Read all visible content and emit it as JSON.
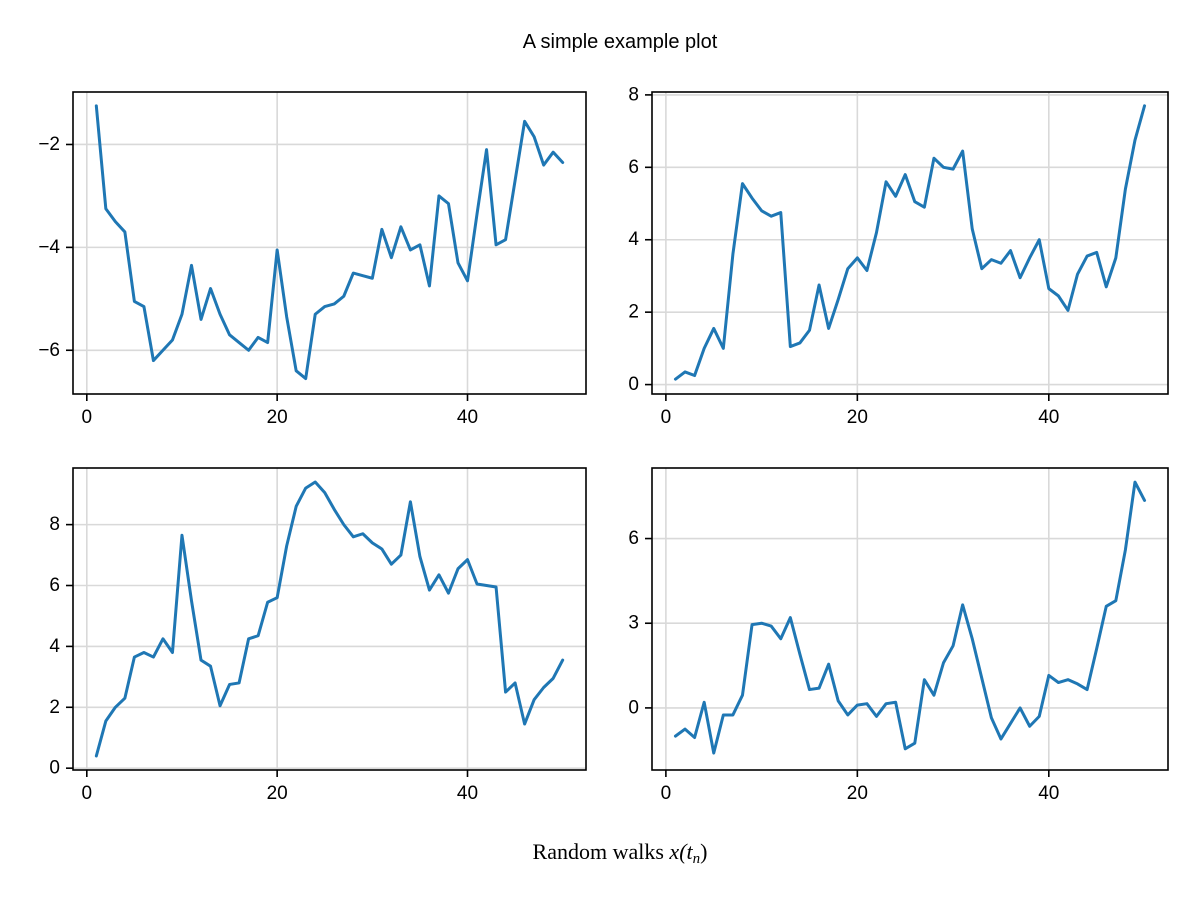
{
  "figure": {
    "title": "A simple example plot",
    "xlabel_prefix": "Random walks ",
    "xlabel_var": "x",
    "xlabel_open": "(t",
    "xlabel_sub": "n",
    "xlabel_close": ")",
    "line_color": "#1f77b4",
    "grid_color": "#d9d9d9",
    "spine_color": "#000000",
    "background": "#ffffff"
  },
  "chart_data": [
    {
      "name": "top-left-random-walk",
      "type": "line",
      "x_start": 1,
      "x_step": 1,
      "xlim": [
        -1.45,
        52.45
      ],
      "ylim": [
        -6.85,
        -0.98
      ],
      "xticks": [
        0,
        20,
        40
      ],
      "yticks": [
        -2,
        -4,
        -6
      ],
      "grid": true,
      "values": [
        -1.25,
        -3.25,
        -3.5,
        -3.7,
        -5.05,
        -5.15,
        -6.2,
        -6.0,
        -5.8,
        -5.3,
        -4.35,
        -5.4,
        -4.8,
        -5.3,
        -5.7,
        -5.85,
        -6.0,
        -5.75,
        -5.85,
        -4.05,
        -5.35,
        -6.4,
        -6.55,
        -5.3,
        -5.15,
        -5.1,
        -4.95,
        -4.5,
        -4.55,
        -4.6,
        -3.65,
        -4.2,
        -3.6,
        -4.05,
        -3.95,
        -4.75,
        -3.0,
        -3.15,
        -4.3,
        -4.65,
        -3.35,
        -2.1,
        -3.95,
        -3.85,
        -2.7,
        -1.55,
        -1.85,
        -2.4,
        -2.15,
        -2.35
      ]
    },
    {
      "name": "top-right-random-walk",
      "type": "line",
      "x_start": 1,
      "x_step": 1,
      "xlim": [
        -1.45,
        52.45
      ],
      "ylim": [
        -0.26,
        8.08
      ],
      "xticks": [
        0,
        20,
        40
      ],
      "yticks": [
        0,
        2,
        4,
        6,
        8
      ],
      "grid": true,
      "values": [
        0.15,
        0.35,
        0.25,
        1.0,
        1.55,
        1.0,
        3.6,
        5.55,
        5.15,
        4.8,
        4.65,
        4.75,
        1.05,
        1.15,
        1.5,
        2.75,
        1.55,
        2.35,
        3.2,
        3.5,
        3.15,
        4.2,
        5.6,
        5.2,
        5.8,
        5.05,
        4.9,
        6.25,
        6.0,
        5.95,
        6.45,
        4.3,
        3.2,
        3.45,
        3.35,
        3.7,
        2.95,
        3.5,
        4.0,
        2.65,
        2.45,
        2.05,
        3.05,
        3.55,
        3.65,
        2.7,
        3.5,
        5.4,
        6.75,
        7.7
      ]
    },
    {
      "name": "bottom-left-random-walk",
      "type": "line",
      "x_start": 1,
      "x_step": 1,
      "xlim": [
        -1.45,
        52.45
      ],
      "ylim": [
        -0.06,
        9.86
      ],
      "xticks": [
        0,
        20,
        40
      ],
      "yticks": [
        0,
        2,
        4,
        6,
        8
      ],
      "grid": true,
      "values": [
        0.4,
        1.55,
        2.0,
        2.3,
        3.65,
        3.8,
        3.65,
        4.25,
        3.8,
        7.65,
        5.5,
        3.55,
        3.35,
        2.05,
        2.75,
        2.8,
        4.25,
        4.35,
        5.45,
        5.6,
        7.3,
        8.6,
        9.2,
        9.4,
        9.05,
        8.5,
        8.0,
        7.6,
        7.7,
        7.4,
        7.2,
        6.7,
        7.0,
        8.75,
        6.95,
        5.85,
        6.35,
        5.75,
        6.55,
        6.85,
        6.05,
        6.0,
        5.95,
        2.5,
        2.8,
        1.45,
        2.25,
        2.65,
        2.95,
        3.55
      ]
    },
    {
      "name": "bottom-right-random-walk",
      "type": "line",
      "x_start": 1,
      "x_step": 1,
      "xlim": [
        -1.45,
        52.45
      ],
      "ylim": [
        -2.2,
        8.5
      ],
      "xticks": [
        0,
        20,
        40
      ],
      "yticks": [
        0,
        3,
        6
      ],
      "grid": true,
      "values": [
        -1.0,
        -0.75,
        -1.05,
        0.2,
        -1.6,
        -0.25,
        -0.25,
        0.45,
        2.95,
        3.0,
        2.9,
        2.45,
        3.2,
        1.9,
        0.65,
        0.7,
        1.55,
        0.25,
        -0.25,
        0.1,
        0.15,
        -0.3,
        0.15,
        0.2,
        -1.45,
        -1.25,
        1.0,
        0.45,
        1.6,
        2.2,
        3.65,
        2.45,
        1.05,
        -0.35,
        -1.1,
        -0.55,
        0.0,
        -0.65,
        -0.3,
        1.15,
        0.9,
        1.0,
        0.85,
        0.65,
        2.1,
        3.6,
        3.8,
        5.6,
        8.0,
        7.35
      ]
    }
  ]
}
